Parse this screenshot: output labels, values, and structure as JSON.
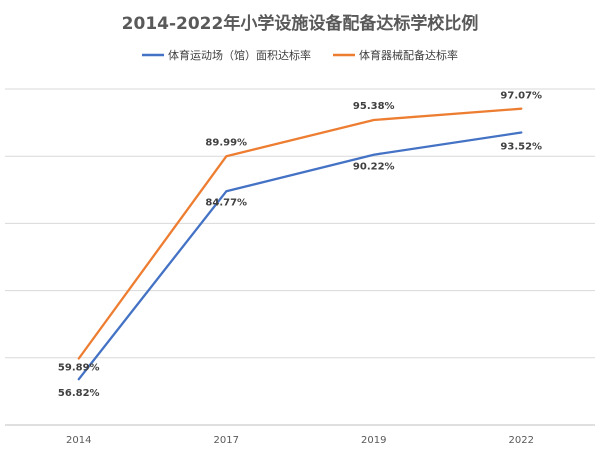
{
  "chart_data": {
    "type": "line",
    "title": "2014-2022年小学设施设备配备达标学校比例",
    "categories": [
      "2014",
      "2017",
      "2019",
      "2022"
    ],
    "series": [
      {
        "name": "体育运动场（馆）面积达标率",
        "color": "#4472C4",
        "values": [
          56.82,
          84.77,
          90.22,
          93.52
        ],
        "labels": [
          "56.82%",
          "84.77%",
          "90.22%",
          "93.52%"
        ]
      },
      {
        "name": "体育器械配备达标率",
        "color": "#ED7D31",
        "values": [
          59.89,
          89.99,
          95.38,
          97.07
        ],
        "labels": [
          "59.89%",
          "89.99%",
          "95.38%",
          "97.07%"
        ]
      }
    ],
    "ylim": [
      50,
      100
    ],
    "grid": true,
    "legend": "top",
    "xlabel": "",
    "ylabel": ""
  }
}
